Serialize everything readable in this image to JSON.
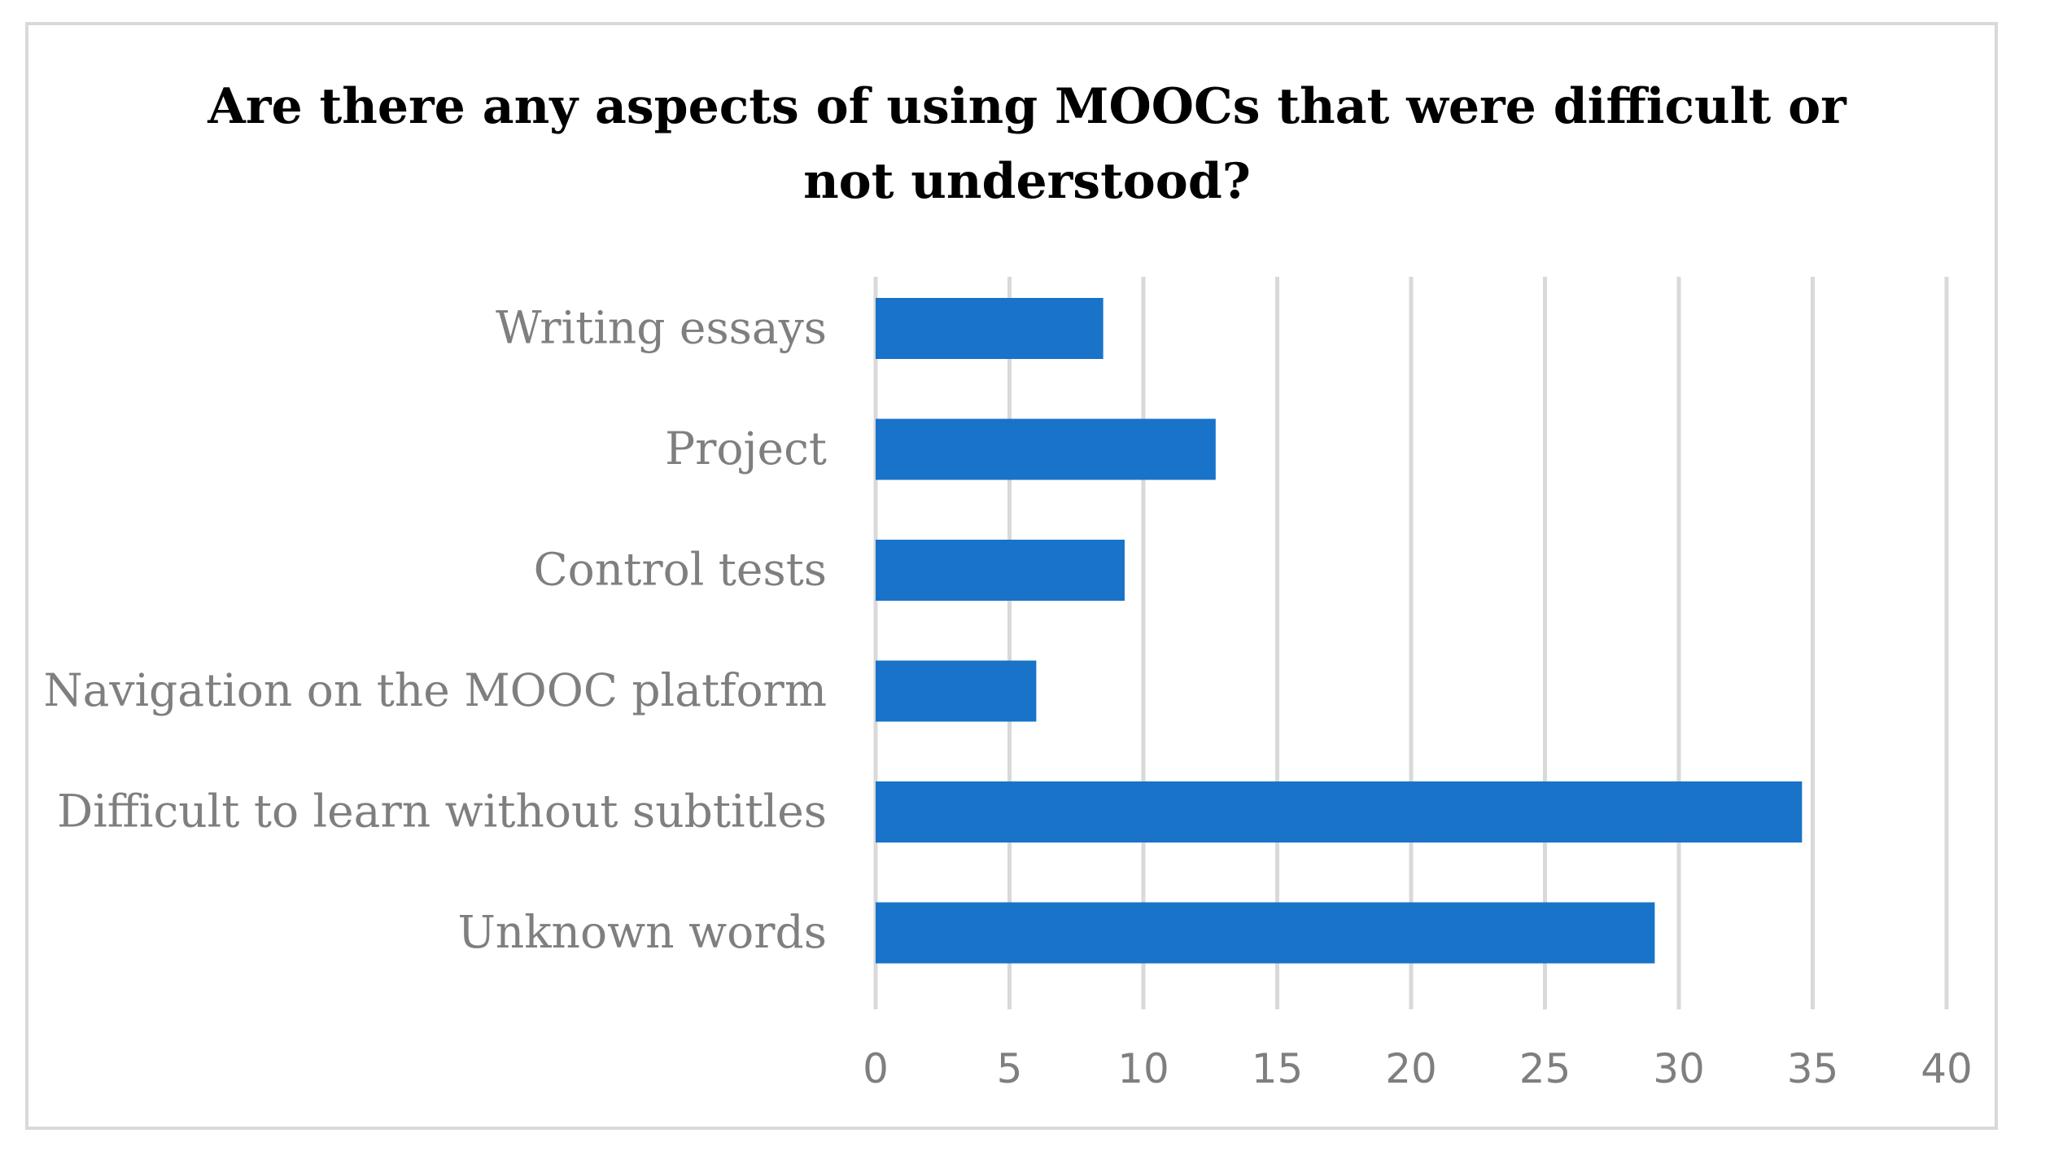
{
  "chart_data": {
    "type": "bar",
    "orientation": "horizontal",
    "title": "Are there any aspects of using MOOCs that were difficult or not understood?",
    "title_lines": [
      "Are there any aspects of using MOOCs that were difficult or",
      "not understood?"
    ],
    "categories": [
      "Writing essays",
      "Project",
      "Control tests",
      "Navigation on the MOOC platform",
      "Difficult to learn without subtitles",
      "Unknown words"
    ],
    "values": [
      8.5,
      12.7,
      9.3,
      6.0,
      34.6,
      29.1
    ],
    "xlim": [
      0,
      40
    ],
    "xticks": [
      "0",
      "5",
      "10",
      "15",
      "20",
      "25",
      "30",
      "35",
      "40"
    ],
    "tick_step": 5,
    "grid": true,
    "legend": "none",
    "colors": {
      "bar": "#1873c9",
      "grid": "#d9d9d9",
      "labels": "#7f7f7f",
      "title": "#000000",
      "frame": "#d9d9d9"
    }
  }
}
